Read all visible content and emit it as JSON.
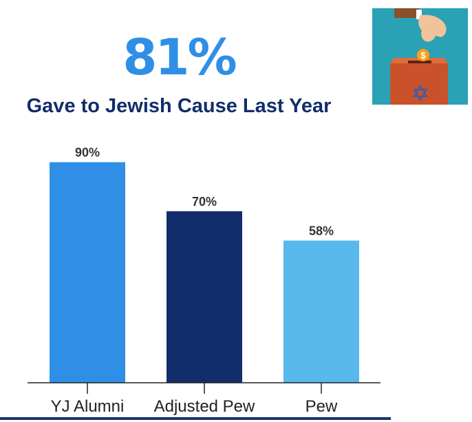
{
  "headline": {
    "stat": "81%",
    "subtitle": "Gave to Jewish Cause Last Year"
  },
  "illustration": {
    "icon": "donation-box-coin-icon",
    "background_color": "#2aa1b4",
    "box_color": "#c9522b",
    "coin_color": "#f7a21b",
    "star_color": "#3a5bb0"
  },
  "chart_data": {
    "type": "bar",
    "categories": [
      "YJ Alumni",
      "Adjusted Pew",
      "Pew"
    ],
    "values": [
      90,
      70,
      58
    ],
    "value_labels": [
      "90%",
      "70%",
      "58%"
    ],
    "colors": [
      "#2f8fe6",
      "#122d6b",
      "#59b8ec"
    ],
    "title": "",
    "xlabel": "",
    "ylabel": "",
    "ylim": [
      0,
      100
    ],
    "grid": false
  }
}
